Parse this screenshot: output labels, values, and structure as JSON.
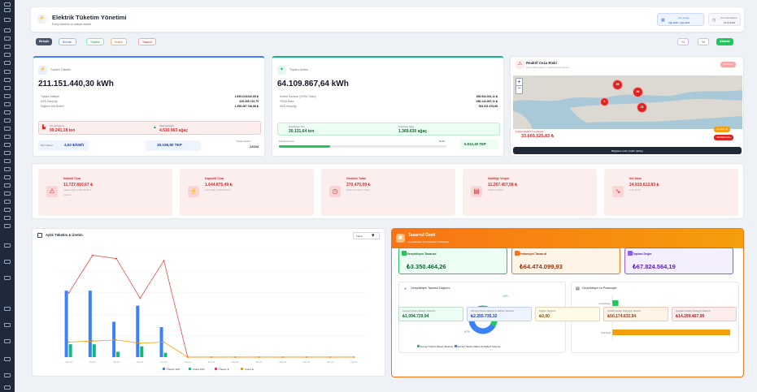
{
  "header": {
    "title": "Elektrik Tüketim Yönetimi",
    "subtitle": "Enerji tüketimi ve maliyet analizi",
    "date_range_label": "Veri Aralığı",
    "date_range_value": "Ağu.2023 - Ağu.2024",
    "last_update_label": "Son Güncelleme",
    "last_update_value": "21.01.2026"
  },
  "toolbar": {
    "filters": [
      "Birimler",
      "Tüketim",
      "Üretim",
      "Tasarruf",
      "Karşı A Zarar"
    ],
    "first_label": "Birleşik",
    "right": [
      "Yıl",
      "Yıl",
      "Aktarılır"
    ]
  },
  "consumption": {
    "title": "Toplam Tüketim",
    "value": "211.151.440,30 kWh",
    "rows": [
      [
        "Toplam Maliyet",
        "1.839.218.042,65 ₺"
      ],
      [
        "UED Karşılığı",
        "326.305.742,79"
      ],
      [
        "Dağıtım Hat Bedeli",
        "1.298.467.746,88 ₺"
      ]
    ],
    "co2_label": "CO₂ Emisyonu",
    "co2_value": "99.241,18 ton",
    "tree_label": "Ağaç Eşdeğeri",
    "tree_value": "4.510.963 ağaç",
    "unit_label": "Birim Maliyet",
    "unit_value": "4,52 ₺/kWh",
    "tep_value": "18.158,80 TEP",
    "extra_label": "Toplam Karbon",
    "extra_value": "23234"
  },
  "production": {
    "title": "Toplam Üretim",
    "value": "64.109.867,64 kWh",
    "rows": [
      [
        "Üretim Kazancı (YEKA Tutarı)",
        "188.544.041,11 ₺"
      ],
      [
        "YEKA Haric",
        "188.144.057,11 ₺"
      ],
      [
        "UED Karşılığı",
        "543.511.678,68"
      ]
    ],
    "co2_label": "Engellenen CO₂",
    "co2_value": "30.131,64 ton",
    "tree_label": "Kurtarılan Ağaç",
    "tree_value": "1.369.630 ağaç",
    "ratio_label": "Karşılama Oranı",
    "ratio_value": "30,4%",
    "ratio": 0.304,
    "tep_value": "5.512,40 TEP"
  },
  "reactive": {
    "title": "Reaktif Ceza Riski",
    "subtitle": "Tesis Lokasyonları ve reaktif ceza risk durumu",
    "badge": "24 Bölgesi",
    "markers": [
      "89",
      "80",
      "4",
      "15"
    ],
    "total_label": "Toplam Reaktif Ceza Bedeli",
    "total_value": "33.669.525,83 ₺",
    "btn1": "Uyarılar (4)",
    "btn2": "CEVRE Detay",
    "btn3": "Bölgelere Göre Analiz (detay)"
  },
  "penalties": [
    {
      "title": "İndüktif Ceza",
      "value": "11.727.810,67 ₺",
      "notes": [
        "Ulaşan Değer 1.086.368,86 ₺",
        "Ceza 13"
      ]
    },
    {
      "title": "Kapasitif Ceza",
      "value": "1.644.875,49 ₺",
      "notes": [
        "Aşan Değer 1.028.348,35 ₺"
      ]
    },
    {
      "title": "Gecikme Tutarı",
      "value": "270.470,09 ₺",
      "notes": [
        "Toplam Gecikme 2.318 ₺"
      ]
    },
    {
      "title": "Sabitliğe Vergisi",
      "value": "11.267.457,58 ₺",
      "notes": [
        "Toplam 12.453 ₺"
      ]
    },
    {
      "title": "Net Zarar",
      "value": "24.910.612,83 ₺",
      "notes": [
        "Oran 14,2%"
      ]
    }
  ],
  "chart": {
    "title": "Aylık Tüketim & Üretim",
    "select": "Tümü",
    "chart_data": {
      "type": "bar",
      "categories": [
        "Ağu.23",
        "Eyl.23",
        "Eki.23",
        "Kas.23",
        "Ara.23",
        "Oca.24",
        "Şub.24",
        "Mar.24",
        "Nis.24",
        "May.24",
        "Haz.24",
        "Tem.24",
        "Ağu.24"
      ],
      "series": [
        {
          "name": "Tüketim kWh",
          "type": "bar",
          "color": "#3b82f6",
          "values": [
            62,
            62,
            33,
            48,
            28,
            0,
            0,
            0,
            0,
            0,
            0,
            0,
            0
          ]
        },
        {
          "name": "Üretim kWh",
          "type": "bar",
          "color": "#10b981",
          "values": [
            12,
            12,
            5,
            10,
            4,
            0,
            0,
            0,
            0,
            0,
            0,
            0,
            0
          ]
        },
        {
          "name": "Tüketim ₺",
          "type": "line",
          "color": "#ef4444",
          "values": [
            60,
            95,
            92,
            55,
            90,
            0,
            0,
            0,
            0,
            0,
            0,
            0,
            0
          ]
        },
        {
          "name": "Üretim ₺",
          "type": "line",
          "color": "#f59e0b",
          "values": [
            14,
            15,
            16,
            13,
            14,
            0,
            0,
            0,
            0,
            0,
            0,
            0,
            0
          ]
        }
      ],
      "ylim": [
        0,
        100
      ]
    }
  },
  "savings": {
    "title": "Tasarruf Özeti",
    "subtitle": "Gerçekleşen ve Potansiyel Tasarruflar",
    "cards": [
      {
        "name": "Gerçekleşen Tasarruf",
        "value": "₺3.350.464,26",
        "bg": "#ecfdf3",
        "fg": "#166534",
        "ic": "#22c55e"
      },
      {
        "name": "Potansiyel Tasarruf",
        "value": "₺64.474.099,93",
        "bg": "#fff4e6",
        "fg": "#9a3412",
        "ic": "#f97316"
      },
      {
        "name": "Toplam Değer",
        "value": "₺67.824.564,19",
        "bg": "#f3efff",
        "fg": "#5b21b6",
        "ic": "#8b5cf6"
      }
    ],
    "donut_title": "Gerçekleşen Tasarruf Dağılımı",
    "donut": {
      "labels": [
        "33%",
        "67%"
      ],
      "values": [
        33,
        67
      ]
    },
    "legend": [
      "Sermayi Tüketim Maliyeti Tasarrufu",
      "Sermayi Tüketim Maliyeti ile Maliyeti Tasarrufu"
    ],
    "hbar_title": "Gerçekleşen vs Potansiyel",
    "hbar_labels": [
      "Gerçekleşen",
      "Potansiyel"
    ],
    "hbar_values": [
      3.35,
      64.47
    ],
    "bottom": [
      {
        "t": "Sermayi Tüketim Maliyeti Tasarrufu",
        "v": "₺1.094.729,94",
        "bg": "#ecfdf3",
        "fg": "#166534"
      },
      {
        "t": "Sermayi Tüketim Maliyeti ile Maliyeti Tasarrufu",
        "v": "₺2.255.735,32",
        "bg": "#eef4ff",
        "fg": "#1e40af"
      },
      {
        "t": "Değiştir Tasarrufu",
        "v": "₺0,00",
        "bg": "#fffbe6",
        "fg": "#854d0e"
      },
      {
        "t": "İndüktif Cezalar Potansiyel Tasarruf",
        "v": "₺50.174.632,94",
        "bg": "#fff4e6",
        "fg": "#9a3412"
      },
      {
        "t": "Kapasitif Cezalar Potansiyel Tasarruf",
        "v": "₺14.299.467,99",
        "bg": "#fdeeee",
        "fg": "#b91c1c"
      }
    ]
  }
}
